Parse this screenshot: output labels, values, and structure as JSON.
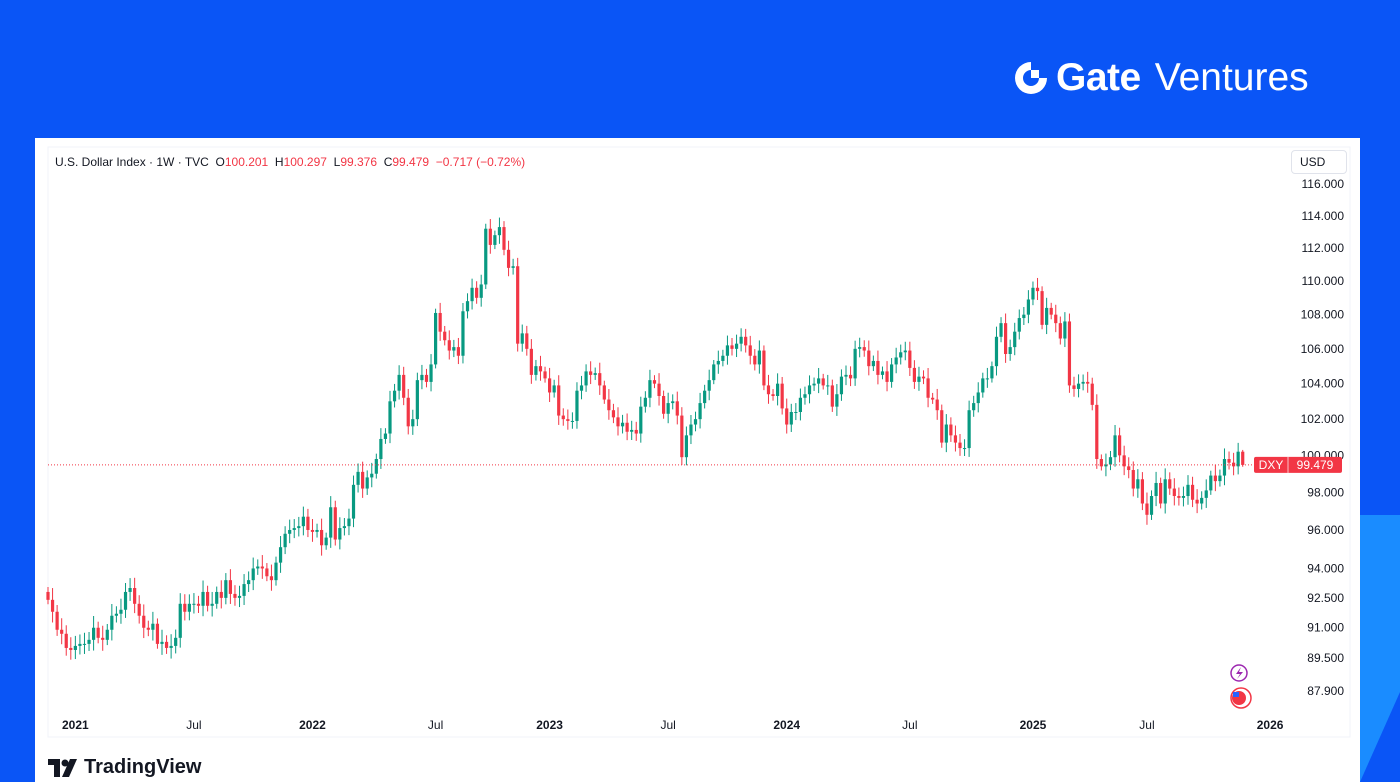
{
  "brand": {
    "name_bold": "Gate",
    "name_light": "Ventures"
  },
  "legend": {
    "symbol": "U.S. Dollar Index · 1W · TVC",
    "o_label": "O",
    "o": "100.201",
    "h_label": "H",
    "h": "100.297",
    "l_label": "L",
    "l": "99.376",
    "c_label": "C",
    "c": "99.479",
    "change": "−0.717 (−0.72%)"
  },
  "currency_button": "USD",
  "price_tag": {
    "symbol": "DXY",
    "value": "99.479"
  },
  "footer_logo": "TradingView",
  "colors": {
    "up": "#089981",
    "down": "#f23645",
    "background": "#0a55f6"
  },
  "chart_data": {
    "type": "candlestick",
    "title": "U.S. Dollar Index · 1W · TVC",
    "interval": "1W",
    "y_scale": "log",
    "ylim": [
      87.0,
      116.5
    ],
    "y_ticks": [
      "116.000",
      "114.000",
      "112.000",
      "110.000",
      "108.000",
      "106.000",
      "104.000",
      "102.000",
      "100.000",
      "98.000",
      "96.000",
      "94.000",
      "92.500",
      "91.000",
      "89.500",
      "87.900"
    ],
    "x_ticks": [
      {
        "label": "2021",
        "week": 6,
        "bold": true
      },
      {
        "label": "Jul",
        "week": 32
      },
      {
        "label": "2022",
        "week": 58,
        "bold": true
      },
      {
        "label": "Jul",
        "week": 85
      },
      {
        "label": "2023",
        "week": 110,
        "bold": true
      },
      {
        "label": "Jul",
        "week": 136
      },
      {
        "label": "2024",
        "week": 162,
        "bold": true
      },
      {
        "label": "Jul",
        "week": 189
      },
      {
        "label": "2025",
        "week": 216,
        "bold": true
      },
      {
        "label": "Jul",
        "week": 241
      },
      {
        "label": "2026",
        "week": 268,
        "bold": true
      }
    ],
    "first_open": 92.8,
    "last_bar": {
      "o": 100.201,
      "h": 100.297,
      "l": 99.376,
      "c": 99.479
    },
    "weekly_closes": [
      92.4,
      91.8,
      90.9,
      90.7,
      90.0,
      89.9,
      90.1,
      90.2,
      90.2,
      90.4,
      91.0,
      90.5,
      90.4,
      90.9,
      91.6,
      91.7,
      91.9,
      92.8,
      93.0,
      92.2,
      91.6,
      91.0,
      90.9,
      91.2,
      90.2,
      90.3,
      90.0,
      90.1,
      90.5,
      92.2,
      91.8,
      92.2,
      92.2,
      92.1,
      92.8,
      92.1,
      92.2,
      92.8,
      92.5,
      93.4,
      92.7,
      92.5,
      92.6,
      93.2,
      93.4,
      94.0,
      94.1,
      94.0,
      93.6,
      93.4,
      94.3,
      95.1,
      95.8,
      96.0,
      96.1,
      96.2,
      96.7,
      96.0,
      95.9,
      96.0,
      95.2,
      95.6,
      97.2,
      95.5,
      96.1,
      96.2,
      96.6,
      98.4,
      99.1,
      98.2,
      98.8,
      99.0,
      99.8,
      100.9,
      101.2,
      103.0,
      103.6,
      104.5,
      103.2,
      101.6,
      102.0,
      104.2,
      104.5,
      104.1,
      105.1,
      108.1,
      107.0,
      106.5,
      105.9,
      106.1,
      105.6,
      108.2,
      108.8,
      109.6,
      109.0,
      109.8,
      113.2,
      112.2,
      112.8,
      113.3,
      111.9,
      110.8,
      110.9,
      106.3,
      106.9,
      106.0,
      104.5,
      105.0,
      104.7,
      104.3,
      103.5,
      103.9,
      102.2,
      102.0,
      101.9,
      101.9,
      103.6,
      103.9,
      104.7,
      104.5,
      104.6,
      103.9,
      103.1,
      102.5,
      102.1,
      101.6,
      101.8,
      101.3,
      101.4,
      101.2,
      102.7,
      103.2,
      104.2,
      104.0,
      103.3,
      102.3,
      102.9,
      103.0,
      102.2,
      99.9,
      101.1,
      101.7,
      102.0,
      102.9,
      103.6,
      104.2,
      105.1,
      105.3,
      105.6,
      106.2,
      106.0,
      106.3,
      106.7,
      106.2,
      105.6,
      105.1,
      105.9,
      103.9,
      103.4,
      103.3,
      104.0,
      102.6,
      101.7,
      102.4,
      102.4,
      103.2,
      103.4,
      103.9,
      104.0,
      104.3,
      103.9,
      103.9,
      102.7,
      103.4,
      104.4,
      104.5,
      104.3,
      106.0,
      106.1,
      105.9,
      105.0,
      105.3,
      104.5,
      104.7,
      104.1,
      105.1,
      105.5,
      105.8,
      105.9,
      104.9,
      104.1,
      104.4,
      104.3,
      103.2,
      103.1,
      102.5,
      100.7,
      101.7,
      101.1,
      100.7,
      100.4,
      100.4,
      102.5,
      102.9,
      103.5,
      104.3,
      104.3,
      105.0,
      106.7,
      107.5,
      105.7,
      106.1,
      107.0,
      107.8,
      108.0,
      108.9,
      109.6,
      109.4,
      107.4,
      108.4,
      108.0,
      107.5,
      106.6,
      107.6,
      103.9,
      103.7,
      104.0,
      104.1,
      104.0,
      102.8,
      99.8,
      99.4,
      99.5,
      99.9,
      101.1,
      100.0,
      99.4,
      99.2,
      98.2,
      98.7,
      97.4,
      96.8,
      97.8,
      98.5,
      97.4,
      98.7,
      98.2,
      97.8,
      97.7,
      97.8,
      98.4,
      97.6,
      97.4,
      97.7,
      98.1,
      98.9,
      98.6,
      98.9,
      99.8,
      99.6,
      99.4,
      100.2
    ]
  }
}
